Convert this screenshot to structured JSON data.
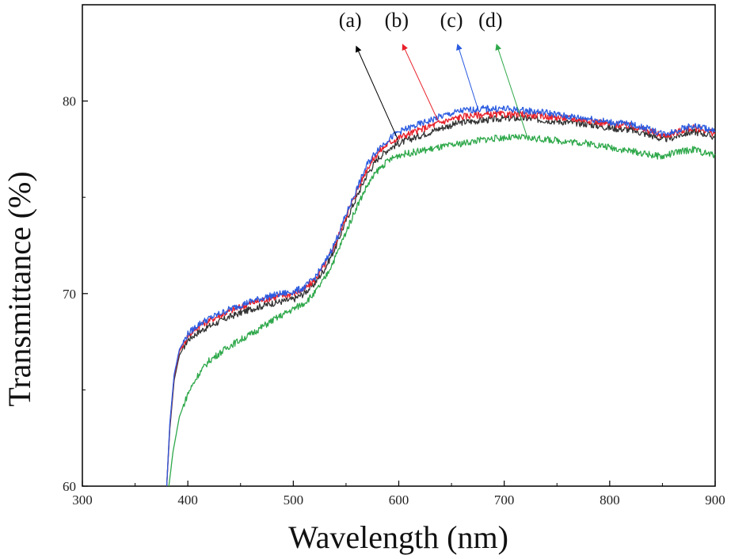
{
  "chart_data": {
    "type": "line",
    "xlabel": "Wavelength (nm)",
    "ylabel": "Transmittance (%)",
    "xlim": [
      300,
      900
    ],
    "ylim": [
      60,
      85
    ],
    "xticks": [
      "300",
      "400",
      "500",
      "600",
      "700",
      "800",
      "900"
    ],
    "yticks": [
      "60",
      "70",
      "80"
    ],
    "grid": false,
    "series": [
      {
        "name": "(a)",
        "color": "#333333",
        "points": [
          [
            380,
            60
          ],
          [
            383,
            63
          ],
          [
            387,
            65.5
          ],
          [
            392,
            66.8
          ],
          [
            400,
            67.6
          ],
          [
            410,
            68.0
          ],
          [
            420,
            68.3
          ],
          [
            440,
            68.8
          ],
          [
            460,
            69.2
          ],
          [
            480,
            69.5
          ],
          [
            500,
            69.7
          ],
          [
            510,
            70.0
          ],
          [
            520,
            70.5
          ],
          [
            530,
            71.3
          ],
          [
            540,
            72.4
          ],
          [
            550,
            73.8
          ],
          [
            560,
            75.0
          ],
          [
            570,
            76.2
          ],
          [
            580,
            77.0
          ],
          [
            590,
            77.5
          ],
          [
            600,
            77.8
          ],
          [
            620,
            78.2
          ],
          [
            640,
            78.6
          ],
          [
            660,
            78.9
          ],
          [
            680,
            79.0
          ],
          [
            700,
            79.1
          ],
          [
            720,
            79.1
          ],
          [
            740,
            79.0
          ],
          [
            760,
            78.9
          ],
          [
            780,
            78.8
          ],
          [
            800,
            78.6
          ],
          [
            820,
            78.5
          ],
          [
            840,
            78.2
          ],
          [
            850,
            78.0
          ],
          [
            860,
            78.1
          ],
          [
            870,
            78.3
          ],
          [
            880,
            78.4
          ],
          [
            890,
            78.3
          ],
          [
            900,
            78.1
          ]
        ]
      },
      {
        "name": "(b)",
        "color": "#e8202a",
        "points": [
          [
            380,
            60
          ],
          [
            383,
            63.2
          ],
          [
            387,
            65.7
          ],
          [
            392,
            67.0
          ],
          [
            400,
            67.8
          ],
          [
            410,
            68.3
          ],
          [
            420,
            68.6
          ],
          [
            440,
            69.1
          ],
          [
            460,
            69.5
          ],
          [
            480,
            69.8
          ],
          [
            500,
            70.0
          ],
          [
            510,
            70.2
          ],
          [
            520,
            70.7
          ],
          [
            530,
            71.5
          ],
          [
            540,
            72.6
          ],
          [
            550,
            74.0
          ],
          [
            560,
            75.3
          ],
          [
            570,
            76.5
          ],
          [
            580,
            77.3
          ],
          [
            590,
            77.8
          ],
          [
            600,
            78.1
          ],
          [
            620,
            78.5
          ],
          [
            640,
            78.9
          ],
          [
            660,
            79.2
          ],
          [
            680,
            79.3
          ],
          [
            700,
            79.3
          ],
          [
            720,
            79.3
          ],
          [
            740,
            79.2
          ],
          [
            760,
            79.1
          ],
          [
            780,
            79.0
          ],
          [
            800,
            78.8
          ],
          [
            820,
            78.7
          ],
          [
            840,
            78.4
          ],
          [
            850,
            78.2
          ],
          [
            860,
            78.3
          ],
          [
            870,
            78.5
          ],
          [
            880,
            78.6
          ],
          [
            890,
            78.5
          ],
          [
            900,
            78.3
          ]
        ]
      },
      {
        "name": "(c)",
        "color": "#2a5be0",
        "points": [
          [
            380,
            60
          ],
          [
            383,
            63.3
          ],
          [
            387,
            65.8
          ],
          [
            392,
            67.1
          ],
          [
            400,
            67.9
          ],
          [
            410,
            68.4
          ],
          [
            420,
            68.7
          ],
          [
            440,
            69.2
          ],
          [
            460,
            69.6
          ],
          [
            480,
            69.9
          ],
          [
            500,
            70.1
          ],
          [
            510,
            70.3
          ],
          [
            520,
            70.8
          ],
          [
            530,
            71.6
          ],
          [
            540,
            72.7
          ],
          [
            550,
            74.1
          ],
          [
            560,
            75.4
          ],
          [
            570,
            76.7
          ],
          [
            580,
            77.5
          ],
          [
            590,
            78.0
          ],
          [
            600,
            78.4
          ],
          [
            620,
            78.8
          ],
          [
            640,
            79.2
          ],
          [
            660,
            79.5
          ],
          [
            680,
            79.6
          ],
          [
            700,
            79.6
          ],
          [
            720,
            79.5
          ],
          [
            740,
            79.4
          ],
          [
            760,
            79.2
          ],
          [
            780,
            79.1
          ],
          [
            800,
            78.9
          ],
          [
            820,
            78.8
          ],
          [
            840,
            78.5
          ],
          [
            850,
            78.3
          ],
          [
            860,
            78.4
          ],
          [
            870,
            78.6
          ],
          [
            880,
            78.7
          ],
          [
            890,
            78.6
          ],
          [
            900,
            78.4
          ]
        ]
      },
      {
        "name": "(d)",
        "color": "#2ea84a",
        "points": [
          [
            382,
            60
          ],
          [
            386,
            61.8
          ],
          [
            392,
            63.6
          ],
          [
            400,
            64.8
          ],
          [
            410,
            65.8
          ],
          [
            420,
            66.5
          ],
          [
            440,
            67.3
          ],
          [
            460,
            67.9
          ],
          [
            480,
            68.6
          ],
          [
            500,
            69.2
          ],
          [
            510,
            69.5
          ],
          [
            520,
            70.0
          ],
          [
            530,
            70.8
          ],
          [
            540,
            71.9
          ],
          [
            550,
            73.2
          ],
          [
            560,
            74.5
          ],
          [
            570,
            75.6
          ],
          [
            580,
            76.4
          ],
          [
            590,
            76.9
          ],
          [
            600,
            77.2
          ],
          [
            620,
            77.4
          ],
          [
            640,
            77.6
          ],
          [
            660,
            77.8
          ],
          [
            680,
            78.0
          ],
          [
            700,
            78.1
          ],
          [
            720,
            78.1
          ],
          [
            740,
            78.0
          ],
          [
            760,
            77.9
          ],
          [
            780,
            77.8
          ],
          [
            800,
            77.6
          ],
          [
            820,
            77.4
          ],
          [
            840,
            77.2
          ],
          [
            850,
            77.1
          ],
          [
            860,
            77.3
          ],
          [
            870,
            77.4
          ],
          [
            880,
            77.5
          ],
          [
            890,
            77.3
          ],
          [
            900,
            77.2
          ]
        ]
      }
    ],
    "annotations": [
      {
        "text": "(a)",
        "color": "#000000",
        "arrow_from": [
          600,
          77.9
        ],
        "arrow_to": [
          560,
          82.8
        ]
      },
      {
        "text": "(b)",
        "color": "#e8202a",
        "arrow_from": [
          637,
          79.0
        ],
        "arrow_to": [
          604,
          82.9
        ]
      },
      {
        "text": "(c)",
        "color": "#2a5be0",
        "arrow_from": [
          675,
          79.6
        ],
        "arrow_to": [
          656,
          82.9
        ]
      },
      {
        "text": "(d)",
        "color": "#2ea84a",
        "arrow_from": [
          722,
          78.1
        ],
        "arrow_to": [
          693,
          82.9
        ]
      }
    ]
  }
}
